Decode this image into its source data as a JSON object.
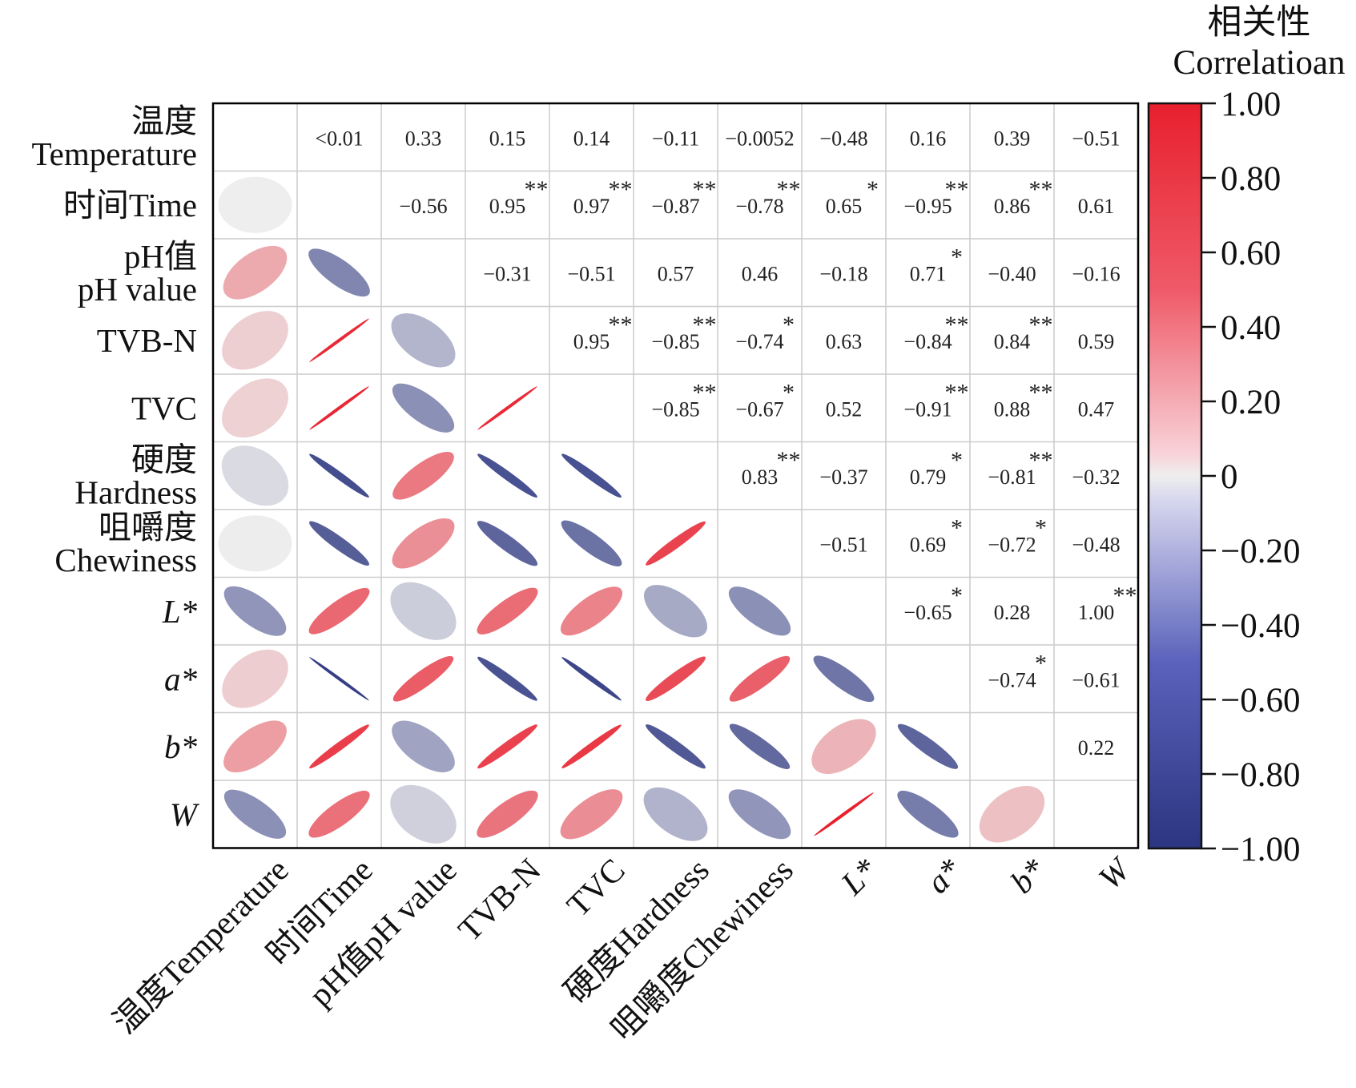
{
  "chart_data": {
    "type": "heatmap",
    "variables": [
      {
        "short": "温度Temperature",
        "row_lines": [
          "温度",
          "Temperature"
        ],
        "col_label": "温度Temperature",
        "italic": false
      },
      {
        "short": "时间Time",
        "row_lines": [
          "时间Time"
        ],
        "col_label": "时间Time",
        "italic": false
      },
      {
        "short": "pH值pH value",
        "row_lines": [
          "pH值",
          "pH value"
        ],
        "col_label": "pH值pH value",
        "italic": false
      },
      {
        "short": "TVB-N",
        "row_lines": [
          "TVB-N"
        ],
        "col_label": "TVB-N",
        "italic": false
      },
      {
        "short": "TVC",
        "row_lines": [
          "TVC"
        ],
        "col_label": "TVC",
        "italic": false
      },
      {
        "short": "硬度Hardness",
        "row_lines": [
          "硬度",
          "Hardness"
        ],
        "col_label": "硬度Hardness",
        "italic": false
      },
      {
        "short": "咀嚼度Chewiness",
        "row_lines": [
          "咀嚼度",
          "Chewiness"
        ],
        "col_label": "咀嚼度Chewiness",
        "italic": false
      },
      {
        "short": "L*",
        "row_lines": [
          "L*"
        ],
        "col_label": "L*",
        "italic": true
      },
      {
        "short": "a*",
        "row_lines": [
          "a*"
        ],
        "col_label": "a*",
        "italic": true
      },
      {
        "short": "b*",
        "row_lines": [
          "b*"
        ],
        "col_label": "b*",
        "italic": true
      },
      {
        "short": "W",
        "row_lines": [
          "W"
        ],
        "col_label": "W",
        "italic": true
      }
    ],
    "upper_cells": [
      {
        "row": 0,
        "col": 1,
        "text": "<0.01",
        "sig": ""
      },
      {
        "row": 0,
        "col": 2,
        "text": "0.33",
        "sig": ""
      },
      {
        "row": 0,
        "col": 3,
        "text": "0.15",
        "sig": ""
      },
      {
        "row": 0,
        "col": 4,
        "text": "0.14",
        "sig": ""
      },
      {
        "row": 0,
        "col": 5,
        "text": "−0.11",
        "sig": ""
      },
      {
        "row": 0,
        "col": 6,
        "text": "−0.0052",
        "sig": ""
      },
      {
        "row": 0,
        "col": 7,
        "text": "−0.48",
        "sig": ""
      },
      {
        "row": 0,
        "col": 8,
        "text": "0.16",
        "sig": ""
      },
      {
        "row": 0,
        "col": 9,
        "text": "0.39",
        "sig": ""
      },
      {
        "row": 0,
        "col": 10,
        "text": "−0.51",
        "sig": ""
      },
      {
        "row": 1,
        "col": 2,
        "text": "−0.56",
        "sig": ""
      },
      {
        "row": 1,
        "col": 3,
        "text": "0.95",
        "sig": "**"
      },
      {
        "row": 1,
        "col": 4,
        "text": "0.97",
        "sig": "**"
      },
      {
        "row": 1,
        "col": 5,
        "text": "−0.87",
        "sig": "**"
      },
      {
        "row": 1,
        "col": 6,
        "text": "−0.78",
        "sig": "**"
      },
      {
        "row": 1,
        "col": 7,
        "text": "0.65",
        "sig": "*"
      },
      {
        "row": 1,
        "col": 8,
        "text": "−0.95",
        "sig": "**"
      },
      {
        "row": 1,
        "col": 9,
        "text": "0.86",
        "sig": "**"
      },
      {
        "row": 1,
        "col": 10,
        "text": "0.61",
        "sig": ""
      },
      {
        "row": 2,
        "col": 3,
        "text": "−0.31",
        "sig": ""
      },
      {
        "row": 2,
        "col": 4,
        "text": "−0.51",
        "sig": ""
      },
      {
        "row": 2,
        "col": 5,
        "text": "0.57",
        "sig": ""
      },
      {
        "row": 2,
        "col": 6,
        "text": "0.46",
        "sig": ""
      },
      {
        "row": 2,
        "col": 7,
        "text": "−0.18",
        "sig": ""
      },
      {
        "row": 2,
        "col": 8,
        "text": "0.71",
        "sig": "*"
      },
      {
        "row": 2,
        "col": 9,
        "text": "−0.40",
        "sig": ""
      },
      {
        "row": 2,
        "col": 10,
        "text": "−0.16",
        "sig": ""
      },
      {
        "row": 3,
        "col": 4,
        "text": "0.95",
        "sig": "**"
      },
      {
        "row": 3,
        "col": 5,
        "text": "−0.85",
        "sig": "**"
      },
      {
        "row": 3,
        "col": 6,
        "text": "−0.74",
        "sig": "*"
      },
      {
        "row": 3,
        "col": 7,
        "text": "0.63",
        "sig": ""
      },
      {
        "row": 3,
        "col": 8,
        "text": "−0.84",
        "sig": "**"
      },
      {
        "row": 3,
        "col": 9,
        "text": "0.84",
        "sig": "**"
      },
      {
        "row": 3,
        "col": 10,
        "text": "0.59",
        "sig": ""
      },
      {
        "row": 4,
        "col": 5,
        "text": "−0.85",
        "sig": "**"
      },
      {
        "row": 4,
        "col": 6,
        "text": "−0.67",
        "sig": "*"
      },
      {
        "row": 4,
        "col": 7,
        "text": "0.52",
        "sig": ""
      },
      {
        "row": 4,
        "col": 8,
        "text": "−0.91",
        "sig": "**"
      },
      {
        "row": 4,
        "col": 9,
        "text": "0.88",
        "sig": "**"
      },
      {
        "row": 4,
        "col": 10,
        "text": "0.47",
        "sig": ""
      },
      {
        "row": 5,
        "col": 6,
        "text": "0.83",
        "sig": "**"
      },
      {
        "row": 5,
        "col": 7,
        "text": "−0.37",
        "sig": ""
      },
      {
        "row": 5,
        "col": 8,
        "text": "0.79",
        "sig": "*"
      },
      {
        "row": 5,
        "col": 9,
        "text": "−0.81",
        "sig": "**"
      },
      {
        "row": 5,
        "col": 10,
        "text": "−0.32",
        "sig": ""
      },
      {
        "row": 6,
        "col": 7,
        "text": "−0.51",
        "sig": ""
      },
      {
        "row": 6,
        "col": 8,
        "text": "0.69",
        "sig": "*"
      },
      {
        "row": 6,
        "col": 9,
        "text": "−0.72",
        "sig": "*"
      },
      {
        "row": 6,
        "col": 10,
        "text": "−0.48",
        "sig": ""
      },
      {
        "row": 7,
        "col": 8,
        "text": "−0.65",
        "sig": "*"
      },
      {
        "row": 7,
        "col": 9,
        "text": "0.28",
        "sig": ""
      },
      {
        "row": 7,
        "col": 10,
        "text": "1.00",
        "sig": "**"
      },
      {
        "row": 8,
        "col": 9,
        "text": "−0.74",
        "sig": "*"
      },
      {
        "row": 8,
        "col": 10,
        "text": "−0.61",
        "sig": ""
      },
      {
        "row": 9,
        "col": 10,
        "text": "0.22",
        "sig": ""
      }
    ],
    "legend": {
      "title_lines": [
        "相关性",
        "Correlatioan"
      ],
      "ticks": [
        {
          "value": 1.0,
          "label": "1.00"
        },
        {
          "value": 0.8,
          "label": "0.80"
        },
        {
          "value": 0.6,
          "label": "0.60"
        },
        {
          "value": 0.4,
          "label": "0.40"
        },
        {
          "value": 0.2,
          "label": "0.20"
        },
        {
          "value": 0.0,
          "label": "0"
        },
        {
          "value": -0.2,
          "label": "−0.20"
        },
        {
          "value": -0.4,
          "label": "−0.40"
        },
        {
          "value": -0.6,
          "label": "−0.60"
        },
        {
          "value": -0.8,
          "label": "−0.80"
        },
        {
          "value": -1.0,
          "label": "−1.00"
        }
      ],
      "range": [
        -1,
        1
      ],
      "placement": "right"
    },
    "colors": {
      "positive": "#e8202e",
      "negative": "#2b3580",
      "neutral": "#eeeeee",
      "grid": "#cccccc",
      "frame": "#000000"
    }
  }
}
